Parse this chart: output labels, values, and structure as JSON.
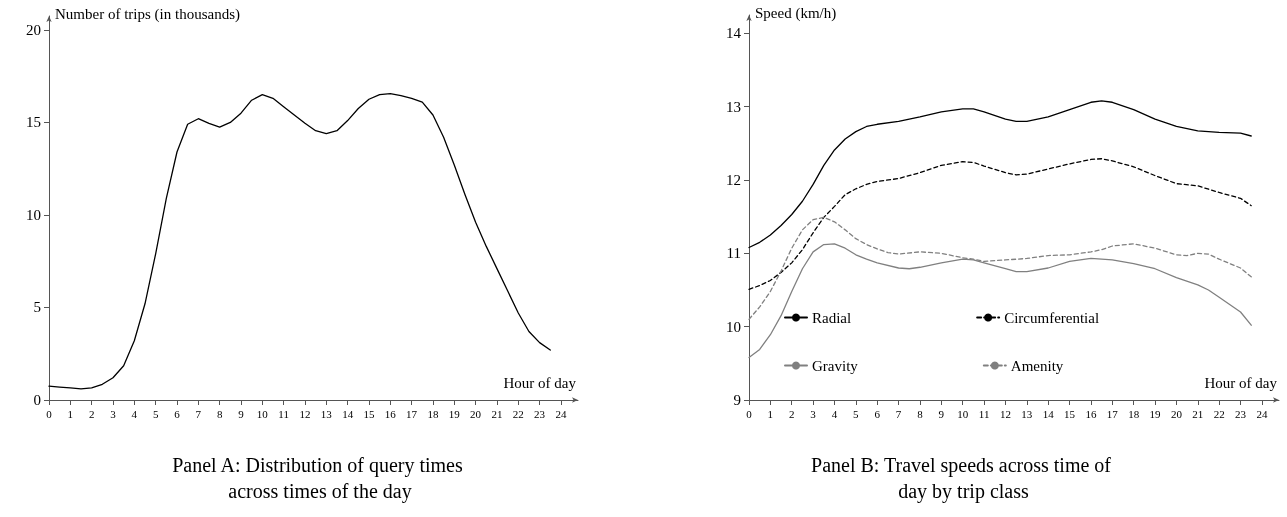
{
  "chart_data": [
    {
      "type": "line",
      "title": "Panel A: Distribution of query times across times of the day",
      "xlabel": "Hour of day",
      "ylabel": "Number of trips (in thousands)",
      "xlim": [
        0,
        24.8
      ],
      "xticks": [
        0,
        1,
        2,
        3,
        4,
        5,
        6,
        7,
        8,
        9,
        10,
        11,
        12,
        13,
        14,
        15,
        16,
        17,
        18,
        19,
        20,
        21,
        22,
        23,
        24
      ],
      "ylim": [
        0,
        20.75
      ],
      "yticks": [
        0,
        5,
        10,
        15,
        20
      ],
      "grid": false,
      "legend": false,
      "marker": "none",
      "x": [
        0,
        0.5,
        1,
        1.5,
        2,
        2.5,
        3,
        3.5,
        4,
        4.5,
        5,
        5.5,
        6,
        6.5,
        7,
        7.5,
        8,
        8.5,
        9,
        9.5,
        10,
        10.5,
        11,
        11.5,
        12,
        12.5,
        13,
        13.5,
        14,
        14.5,
        15,
        15.5,
        16,
        16.5,
        17,
        17.5,
        18,
        18.5,
        19,
        19.5,
        20,
        20.5,
        21,
        21.5,
        22,
        22.5,
        23,
        23.5
      ],
      "series": [
        {
          "color": "#000000",
          "line_style": "solid",
          "values": [
            0.75,
            0.7,
            0.65,
            0.6,
            0.65,
            0.85,
            1.2,
            1.85,
            3.2,
            5.2,
            7.9,
            10.9,
            13.4,
            14.9,
            15.2,
            14.95,
            14.75,
            15.0,
            15.5,
            16.2,
            16.5,
            16.3,
            15.85,
            15.4,
            14.95,
            14.55,
            14.4,
            14.55,
            15.1,
            15.75,
            16.25,
            16.5,
            16.55,
            16.45,
            16.3,
            16.1,
            15.4,
            14.2,
            12.7,
            11.1,
            9.6,
            8.3,
            7.1,
            5.9,
            4.7,
            3.7,
            3.1,
            2.7
          ]
        }
      ]
    },
    {
      "type": "line",
      "title": "Panel B: Travel speeds across time of day by trip class",
      "xlabel": "Hour of day",
      "ylabel": "Speed (km/h)",
      "xlim": [
        0,
        24.8
      ],
      "xticks": [
        0,
        1,
        2,
        3,
        4,
        5,
        6,
        7,
        8,
        9,
        10,
        11,
        12,
        13,
        14,
        15,
        16,
        17,
        18,
        19,
        20,
        21,
        22,
        23,
        24
      ],
      "ylim": [
        9,
        14.25
      ],
      "yticks": [
        9,
        10,
        11,
        12,
        13,
        14
      ],
      "grid": false,
      "legend": "bottom",
      "marker": "none",
      "series": [
        {
          "name": "Radial",
          "color": "#000000",
          "line_style": "solid",
          "x": [
            0,
            0.5,
            1,
            1.5,
            2,
            2.5,
            3,
            3.5,
            4,
            4.5,
            5,
            5.5,
            6,
            7,
            8,
            9,
            10,
            10.5,
            11,
            12,
            12.5,
            13,
            14,
            15,
            16,
            16.5,
            17,
            18,
            19,
            20,
            21,
            22,
            23,
            23.5
          ],
          "values": [
            11.08,
            11.15,
            11.25,
            11.38,
            11.53,
            11.71,
            11.94,
            12.2,
            12.41,
            12.56,
            12.66,
            12.73,
            12.76,
            12.8,
            12.86,
            12.93,
            12.97,
            12.97,
            12.93,
            12.83,
            12.8,
            12.8,
            12.86,
            12.96,
            13.06,
            13.08,
            13.06,
            12.96,
            12.83,
            12.73,
            12.67,
            12.65,
            12.64,
            12.6
          ]
        },
        {
          "name": "Circumferential",
          "color": "#000000",
          "line_style": "dashed",
          "x": [
            0,
            0.5,
            1,
            1.5,
            2,
            2.5,
            3,
            3.5,
            4,
            4.5,
            5,
            5.5,
            6,
            7,
            8,
            9,
            10,
            10.5,
            11,
            12,
            12.5,
            13,
            14,
            15,
            16,
            16.5,
            17,
            18,
            19,
            20,
            21,
            22,
            23,
            23.5
          ],
          "values": [
            10.51,
            10.56,
            10.63,
            10.74,
            10.87,
            11.05,
            11.28,
            11.49,
            11.64,
            11.8,
            11.88,
            11.94,
            11.98,
            12.02,
            12.1,
            12.2,
            12.25,
            12.24,
            12.19,
            12.1,
            12.07,
            12.08,
            12.15,
            12.22,
            12.28,
            12.29,
            12.26,
            12.18,
            12.06,
            11.95,
            11.92,
            11.83,
            11.75,
            11.65
          ]
        },
        {
          "name": "Gravity",
          "color": "#808080",
          "line_style": "solid",
          "x": [
            0,
            0.5,
            1,
            1.5,
            2,
            2.5,
            3,
            3.5,
            4,
            4.5,
            5,
            5.5,
            6,
            7,
            7.5,
            8,
            9,
            10,
            10.5,
            11,
            12,
            12.5,
            13,
            14,
            15,
            16,
            16.5,
            17,
            18,
            19,
            20,
            21,
            21.5,
            22,
            23,
            23.5
          ],
          "values": [
            9.58,
            9.69,
            9.89,
            10.15,
            10.48,
            10.79,
            11.02,
            11.12,
            11.13,
            11.07,
            10.98,
            10.92,
            10.87,
            10.8,
            10.79,
            10.81,
            10.87,
            10.92,
            10.91,
            10.87,
            10.79,
            10.75,
            10.75,
            10.8,
            10.89,
            10.93,
            10.92,
            10.91,
            10.86,
            10.79,
            10.67,
            10.57,
            10.5,
            10.4,
            10.2,
            10.02
          ]
        },
        {
          "name": "Amenity",
          "color": "#808080",
          "line_style": "dashed",
          "x": [
            0,
            0.5,
            1,
            1.5,
            2,
            2.5,
            3,
            3.5,
            4,
            4.5,
            5,
            5.5,
            6,
            6.5,
            7,
            8,
            9,
            10,
            10.5,
            11,
            12,
            13,
            14,
            15,
            16,
            16.5,
            17,
            18,
            19,
            20,
            20.5,
            21,
            21.5,
            22,
            23,
            23.5
          ],
          "values": [
            10.1,
            10.27,
            10.48,
            10.76,
            11.07,
            11.32,
            11.46,
            11.49,
            11.43,
            11.32,
            11.2,
            11.12,
            11.06,
            11.01,
            10.99,
            11.02,
            11.0,
            10.94,
            10.92,
            10.89,
            10.91,
            10.93,
            10.97,
            10.98,
            11.02,
            11.05,
            11.1,
            11.13,
            11.07,
            10.98,
            10.97,
            11.0,
            10.99,
            10.92,
            10.8,
            10.68
          ]
        }
      ]
    }
  ]
}
